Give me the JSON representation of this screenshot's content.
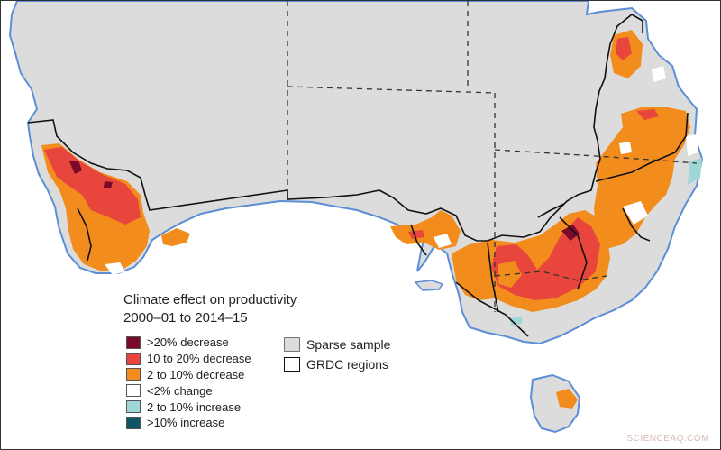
{
  "legend": {
    "title_line1": "Climate effect on productivity",
    "title_line2": "2000–01 to 2014–15",
    "items": [
      {
        "label": ">20% decrease",
        "color": "#7a0a2a"
      },
      {
        "label": "10 to 20% decrease",
        "color": "#e8453c"
      },
      {
        "label": "2 to 10% decrease",
        "color": "#f28c1c"
      },
      {
        "label": "<2% change",
        "color": "#ffffff"
      },
      {
        "label": "2 to 10% increase",
        "color": "#9fd6d6"
      },
      {
        "label": ">10% increase",
        "color": "#0e5566"
      }
    ],
    "extra": [
      {
        "label": "Sparse sample",
        "color": "#dcdcdc"
      },
      {
        "label": "GRDC regions",
        "color": "#ffffff"
      }
    ]
  },
  "colors": {
    "land": "#dcdcdc",
    "water": "#ffffff",
    "coast": "#5b8ed6",
    "state_border": "#333333",
    "grdc_border": "#111111"
  },
  "watermark": "SCIENCEAQ.COM"
}
